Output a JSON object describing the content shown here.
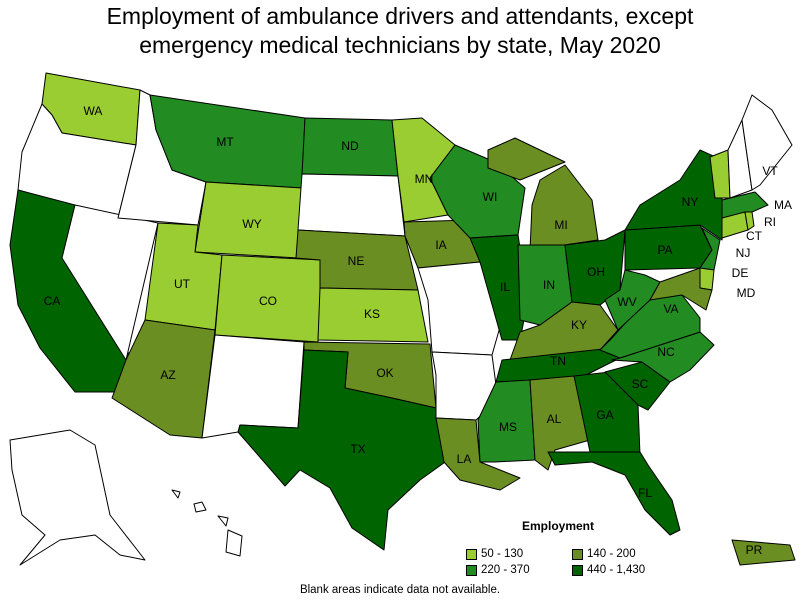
{
  "title_line1": "Employment of ambulance drivers and attendants, except",
  "title_line2": "emergency medical technicians by state, May 2020",
  "legend": {
    "title": "Employment",
    "bins": [
      {
        "label": "50 - 130",
        "color": "#9acd32"
      },
      {
        "label": "140 - 200",
        "color": "#6b8e23"
      },
      {
        "label": "220 - 370",
        "color": "#228b22"
      },
      {
        "label": "440 - 1,430",
        "color": "#006400"
      }
    ]
  },
  "colors": {
    "no_data": "#ffffff",
    "border": "#000000"
  },
  "footnote": "Blank areas indicate data not available.",
  "states": [
    {
      "abbr": "WA",
      "bin": 0
    },
    {
      "abbr": "OR",
      "bin": null
    },
    {
      "abbr": "CA",
      "bin": 3
    },
    {
      "abbr": "NV",
      "bin": null
    },
    {
      "abbr": "ID",
      "bin": null
    },
    {
      "abbr": "MT",
      "bin": 2
    },
    {
      "abbr": "WY",
      "bin": 0
    },
    {
      "abbr": "UT",
      "bin": 0
    },
    {
      "abbr": "AZ",
      "bin": 1
    },
    {
      "abbr": "CO",
      "bin": 0
    },
    {
      "abbr": "NM",
      "bin": null
    },
    {
      "abbr": "ND",
      "bin": 2
    },
    {
      "abbr": "SD",
      "bin": null
    },
    {
      "abbr": "NE",
      "bin": 1
    },
    {
      "abbr": "KS",
      "bin": 0
    },
    {
      "abbr": "OK",
      "bin": 1
    },
    {
      "abbr": "TX",
      "bin": 3
    },
    {
      "abbr": "MN",
      "bin": 0
    },
    {
      "abbr": "IA",
      "bin": 1
    },
    {
      "abbr": "MO",
      "bin": null
    },
    {
      "abbr": "AR",
      "bin": null
    },
    {
      "abbr": "LA",
      "bin": 1
    },
    {
      "abbr": "WI",
      "bin": 2
    },
    {
      "abbr": "IL",
      "bin": 3
    },
    {
      "abbr": "MI",
      "bin": 1
    },
    {
      "abbr": "IN",
      "bin": 2
    },
    {
      "abbr": "OH",
      "bin": 3
    },
    {
      "abbr": "KY",
      "bin": 1
    },
    {
      "abbr": "TN",
      "bin": 3
    },
    {
      "abbr": "MS",
      "bin": 2
    },
    {
      "abbr": "AL",
      "bin": 1
    },
    {
      "abbr": "GA",
      "bin": 3
    },
    {
      "abbr": "FL",
      "bin": 3
    },
    {
      "abbr": "SC",
      "bin": 3
    },
    {
      "abbr": "NC",
      "bin": 2
    },
    {
      "abbr": "VA",
      "bin": 2
    },
    {
      "abbr": "WV",
      "bin": 2
    },
    {
      "abbr": "PA",
      "bin": 3
    },
    {
      "abbr": "NY",
      "bin": 3
    },
    {
      "abbr": "VT",
      "bin": 0
    },
    {
      "abbr": "NH",
      "bin": null
    },
    {
      "abbr": "ME",
      "bin": null
    },
    {
      "abbr": "MA",
      "bin": 2
    },
    {
      "abbr": "RI",
      "bin": 0
    },
    {
      "abbr": "CT",
      "bin": 0
    },
    {
      "abbr": "NJ",
      "bin": 2
    },
    {
      "abbr": "DE",
      "bin": 0
    },
    {
      "abbr": "MD",
      "bin": 1
    },
    {
      "abbr": "AK",
      "bin": null
    },
    {
      "abbr": "HI",
      "bin": null
    },
    {
      "abbr": "PR",
      "bin": 1
    }
  ]
}
